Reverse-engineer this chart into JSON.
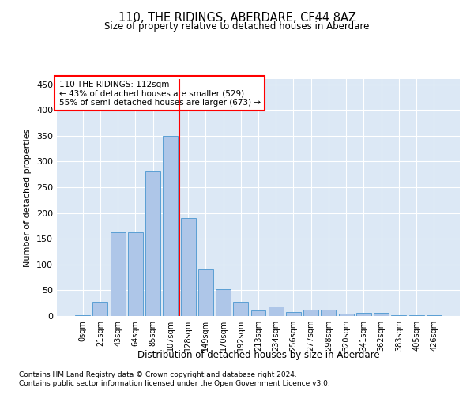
{
  "title1": "110, THE RIDINGS, ABERDARE, CF44 8AZ",
  "title2": "Size of property relative to detached houses in Aberdare",
  "xlabel": "Distribution of detached houses by size in Aberdare",
  "ylabel": "Number of detached properties",
  "categories": [
    "0sqm",
    "21sqm",
    "43sqm",
    "64sqm",
    "85sqm",
    "107sqm",
    "128sqm",
    "149sqm",
    "170sqm",
    "192sqm",
    "213sqm",
    "234sqm",
    "256sqm",
    "277sqm",
    "298sqm",
    "320sqm",
    "341sqm",
    "362sqm",
    "383sqm",
    "405sqm",
    "426sqm"
  ],
  "values": [
    2,
    28,
    162,
    162,
    280,
    350,
    190,
    90,
    52,
    28,
    10,
    18,
    8,
    13,
    13,
    4,
    6,
    6,
    1,
    2,
    1
  ],
  "bar_color": "#aec6e8",
  "bar_edge_color": "#5a9fd4",
  "property_bin_index": 5,
  "annotation_line1": "110 THE RIDINGS: 112sqm",
  "annotation_line2": "← 43% of detached houses are smaller (529)",
  "annotation_line3": "55% of semi-detached houses are larger (673) →",
  "annotation_box_color": "white",
  "annotation_box_edge": "red",
  "vline_color": "red",
  "footer1": "Contains HM Land Registry data © Crown copyright and database right 2024.",
  "footer2": "Contains public sector information licensed under the Open Government Licence v3.0.",
  "ylim": [
    0,
    460
  ],
  "yticks": [
    0,
    50,
    100,
    150,
    200,
    250,
    300,
    350,
    400,
    450
  ],
  "background_color": "#dce8f5",
  "grid_color": "white"
}
